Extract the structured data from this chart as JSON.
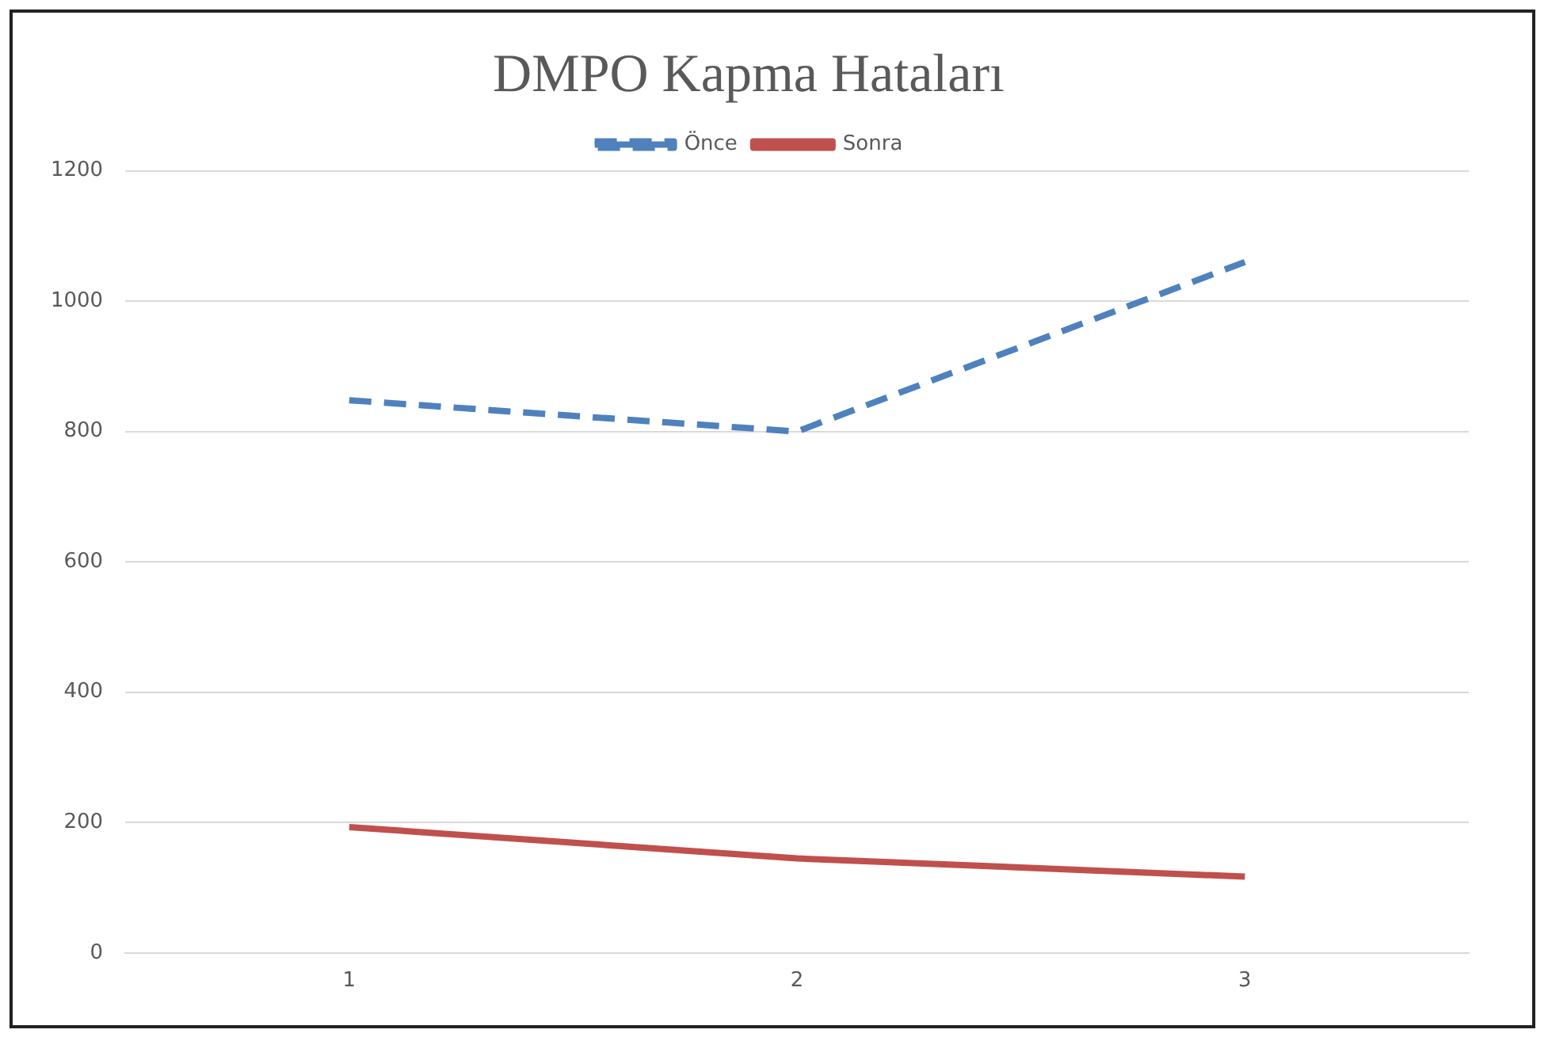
{
  "chart_data": {
    "type": "line",
    "title": "DMPO Kapma Hataları",
    "categories": [
      "1",
      "2",
      "3"
    ],
    "series": [
      {
        "name": "Önce",
        "color": "#4f81bd",
        "values": [
          848,
          800,
          1060
        ],
        "line_style": "dashed"
      },
      {
        "name": "Sonra",
        "color": "#c0504d",
        "values": [
          193,
          145,
          117
        ],
        "line_style": "solid"
      }
    ],
    "ylim": [
      0,
      1200
    ],
    "yticks": [
      0,
      200,
      400,
      600,
      800,
      1000,
      1200
    ],
    "grid": "y",
    "legend": "top",
    "marker": "none"
  }
}
